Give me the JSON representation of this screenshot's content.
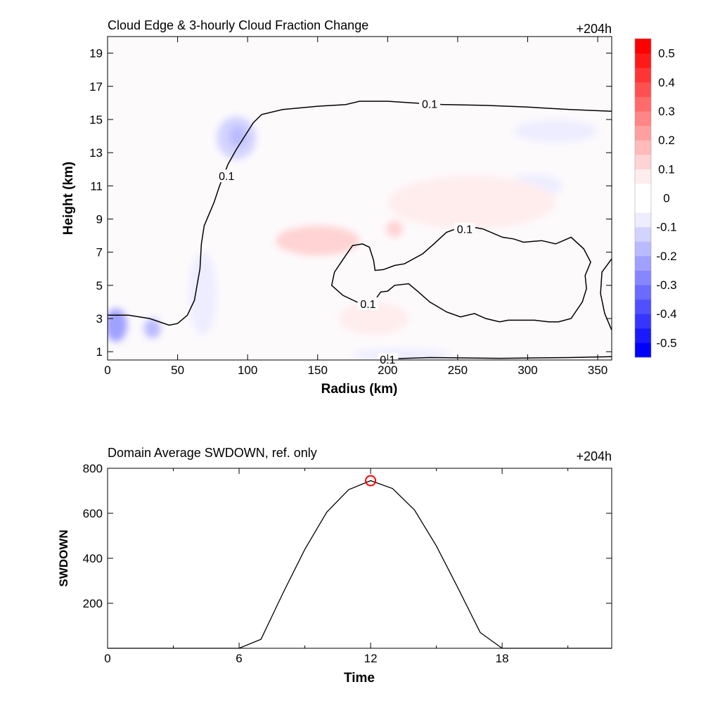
{
  "chart_data": [
    {
      "type": "heatmap",
      "title": "Cloud Edge & 3-hourly Cloud Fraction Change",
      "time_label": "+204h",
      "xlabel": "Radius (km)",
      "ylabel": "Height (km)",
      "xlim": [
        0,
        360
      ],
      "ylim": [
        0.5,
        20
      ],
      "xticks": [
        0,
        50,
        100,
        150,
        200,
        250,
        300,
        350
      ],
      "yticks": [
        1,
        3,
        5,
        7,
        9,
        11,
        13,
        15,
        17,
        19
      ],
      "colorbar": {
        "range": [
          -0.55,
          0.55
        ],
        "levels": [
          -0.55,
          -0.5,
          -0.45,
          -0.4,
          -0.35,
          -0.3,
          -0.25,
          -0.2,
          -0.15,
          -0.1,
          -0.05,
          0.05,
          0.1,
          0.15,
          0.2,
          0.25,
          0.3,
          0.35,
          0.4,
          0.45,
          0.5,
          0.55
        ],
        "tick_labels": [
          "0.5",
          "0.4",
          "0.3",
          "0.2",
          "0.1",
          "0",
          "-0.1",
          "-0.2",
          "-0.3",
          "-0.4",
          "-0.5"
        ],
        "tick_values": [
          0.5,
          0.4,
          0.3,
          0.2,
          0.1,
          0,
          -0.1,
          -0.2,
          -0.3,
          -0.4,
          -0.5
        ],
        "colors": [
          "#0000ff",
          "#1a1aff",
          "#3535ff",
          "#5050ff",
          "#6b6bff",
          "#8686ff",
          "#a0a0ff",
          "#babaff",
          "#d3d3ff",
          "#ededff",
          "#ffffff",
          "#ffeded",
          "#ffd3d3",
          "#ffbaba",
          "#ffa0a0",
          "#ff8686",
          "#ff6b6b",
          "#ff5050",
          "#ff3535",
          "#ff1a1a",
          "#ff0000"
        ]
      },
      "field_patches": [
        {
          "x": 6,
          "y": 2.6,
          "rx": 8,
          "ry": 1.0,
          "value": -0.25
        },
        {
          "x": 32,
          "y": 2.4,
          "rx": 6,
          "ry": 0.6,
          "value": -0.2
        },
        {
          "x": 92,
          "y": 13.9,
          "rx": 14,
          "ry": 1.3,
          "value": -0.15
        },
        {
          "x": 93,
          "y": 14.0,
          "rx": 6,
          "ry": 0.6,
          "value": -0.2
        },
        {
          "x": 320,
          "y": 14.3,
          "rx": 30,
          "ry": 0.7,
          "value": -0.08
        },
        {
          "x": 305,
          "y": 11.0,
          "rx": 20,
          "ry": 0.7,
          "value": -0.06
        },
        {
          "x": 68,
          "y": 4.5,
          "rx": 10,
          "ry": 2.5,
          "value": -0.08
        },
        {
          "x": 210,
          "y": 0.8,
          "rx": 35,
          "ry": 0.4,
          "value": -0.06
        },
        {
          "x": 150,
          "y": 7.7,
          "rx": 30,
          "ry": 0.9,
          "value": 0.12
        },
        {
          "x": 190,
          "y": 3.0,
          "rx": 25,
          "ry": 1.0,
          "value": 0.09
        },
        {
          "x": 205,
          "y": 8.4,
          "rx": 6,
          "ry": 0.5,
          "value": 0.1
        },
        {
          "x": 260,
          "y": 10.0,
          "rx": 60,
          "ry": 1.6,
          "value": 0.05
        }
      ],
      "contours": [
        {
          "level": "0.1",
          "points": [
            [
              0,
              3.2
            ],
            [
              15,
              3.2
            ],
            [
              30,
              3.0
            ],
            [
              44,
              2.6
            ],
            [
              50,
              2.7
            ],
            [
              57,
              3.2
            ],
            [
              62,
              4.1
            ],
            [
              66,
              6.0
            ],
            [
              67,
              7.5
            ],
            [
              69,
              8.6
            ],
            [
              72,
              9.2
            ],
            [
              76,
              10.0
            ],
            [
              80,
              11.0
            ],
            [
              86,
              12.3
            ],
            [
              92,
              13.2
            ],
            [
              98,
              14.0
            ],
            [
              104,
              14.8
            ],
            [
              110,
              15.3
            ],
            [
              125,
              15.6
            ],
            [
              150,
              15.8
            ],
            [
              170,
              15.9
            ],
            [
              180,
              16.1
            ],
            [
              200,
              16.1
            ],
            [
              218,
              16.0
            ],
            [
              240,
              15.9
            ],
            [
              270,
              15.85
            ],
            [
              300,
              15.75
            ],
            [
              330,
              15.6
            ],
            [
              360,
              15.5
            ]
          ]
        },
        {
          "level": "0.1",
          "points": [
            [
              183,
              3.8
            ],
            [
              168,
              4.4
            ],
            [
              160,
              5.0
            ],
            [
              162,
              5.8
            ],
            [
              170,
              6.8
            ],
            [
              175,
              7.4
            ],
            [
              182,
              7.5
            ],
            [
              187,
              7.3
            ],
            [
              190,
              6.5
            ],
            [
              191,
              5.9
            ],
            [
              197,
              5.95
            ],
            [
              205,
              6.2
            ],
            [
              212,
              6.3
            ],
            [
              225,
              6.9
            ],
            [
              233,
              7.5
            ],
            [
              242,
              8.2
            ],
            [
              255,
              8.6
            ],
            [
              268,
              8.4
            ],
            [
              282,
              7.9
            ],
            [
              290,
              7.8
            ],
            [
              297,
              7.6
            ],
            [
              310,
              7.7
            ],
            [
              320,
              7.5
            ],
            [
              331,
              7.9
            ],
            [
              340,
              7.2
            ],
            [
              345,
              6.4
            ],
            [
              341,
              5.6
            ],
            [
              342,
              4.8
            ],
            [
              339,
              4.0
            ],
            [
              331,
              3.0
            ],
            [
              322,
              2.8
            ],
            [
              315,
              2.8
            ],
            [
              305,
              2.9
            ],
            [
              295,
              2.9
            ],
            [
              286,
              2.9
            ],
            [
              280,
              2.8
            ],
            [
              270,
              3.0
            ],
            [
              262,
              3.3
            ],
            [
              252,
              3.1
            ],
            [
              242,
              3.4
            ],
            [
              230,
              4.0
            ],
            [
              222,
              4.6
            ],
            [
              215,
              5.1
            ],
            [
              205,
              5.0
            ],
            [
              200,
              4.65
            ],
            [
              195,
              4.6
            ],
            [
              190,
              4.0
            ],
            [
              183,
              3.8
            ]
          ]
        },
        {
          "level": "0.1",
          "points": [
            [
              196,
              0.55
            ],
            [
              230,
              0.65
            ],
            [
              280,
              0.6
            ],
            [
              330,
              0.65
            ],
            [
              360,
              0.7
            ]
          ]
        },
        {
          "level": "",
          "points": [
            [
              360,
              6.6
            ],
            [
              353,
              5.8
            ],
            [
              352,
              4.5
            ],
            [
              355,
              3.3
            ],
            [
              360,
              2.3
            ]
          ]
        }
      ],
      "contour_labels": [
        {
          "text": "0.1",
          "x": 230,
          "y": 15.95
        },
        {
          "text": "0.1",
          "x": 85,
          "y": 11.6
        },
        {
          "text": "0.1",
          "x": 255,
          "y": 8.4
        },
        {
          "text": "0.1",
          "x": 186,
          "y": 3.9
        },
        {
          "text": "0.1",
          "x": 200,
          "y": 0.55
        }
      ]
    },
    {
      "type": "line",
      "title": "Domain Average SWDOWN, ref. only",
      "time_label": "+204h",
      "xlabel": "Time",
      "ylabel": "SWDOWN",
      "xlim": [
        0,
        23
      ],
      "ylim": [
        0,
        800
      ],
      "xticks": [
        0,
        6,
        12,
        18
      ],
      "xticks_minor": [
        3,
        9,
        15,
        21
      ],
      "yticks": [
        200,
        400,
        600,
        800
      ],
      "x": [
        0,
        1,
        2,
        3,
        4,
        5,
        6,
        7,
        8,
        9,
        10,
        11,
        12,
        13,
        14,
        15,
        16,
        17,
        18,
        19,
        20,
        21,
        22,
        23
      ],
      "values": [
        0,
        0,
        0,
        0,
        0,
        0,
        0,
        40,
        245,
        440,
        605,
        705,
        745,
        710,
        615,
        455,
        265,
        70,
        0,
        0,
        0,
        0,
        0,
        0
      ],
      "marker": {
        "x": 12,
        "y": 745,
        "color": "#ff0000"
      }
    }
  ]
}
